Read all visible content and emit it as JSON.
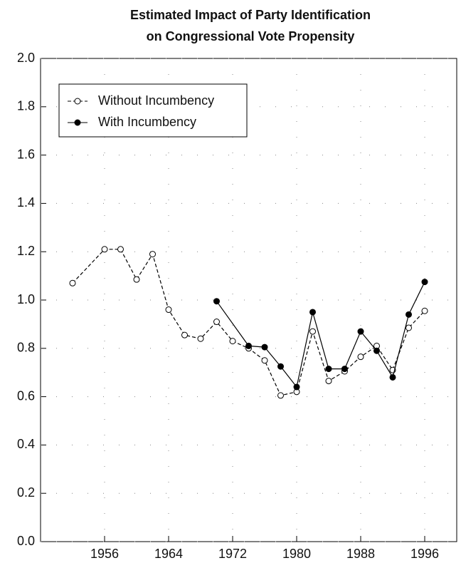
{
  "chart_data": {
    "type": "line",
    "title": [
      "Estimated Impact of Party Identification",
      "on Congressional Vote Propensity"
    ],
    "xlim": [
      1948,
      2000
    ],
    "xticks": [
      1956,
      1964,
      1972,
      1980,
      1988,
      1996
    ],
    "ylim": [
      0,
      2
    ],
    "yticks": [
      {
        "value": 0,
        "label": "0.0"
      },
      {
        "value": 0.2,
        "label": "0.2"
      },
      {
        "value": 0.4,
        "label": "0.4"
      },
      {
        "value": 0.6,
        "label": "0.6"
      },
      {
        "value": 0.8,
        "label": "0.8"
      },
      {
        "value": 1,
        "label": "1.0"
      },
      {
        "value": 1.2,
        "label": "1.2"
      },
      {
        "value": 1.4,
        "label": "1.4"
      },
      {
        "value": 1.6,
        "label": "1.6"
      },
      {
        "value": 1.8,
        "label": "1.8"
      },
      {
        "value": 2,
        "label": "2.0"
      }
    ],
    "grid": true,
    "legend": "upper left",
    "series": [
      {
        "name": "Without Incumbency",
        "color": "#000",
        "dashed": true,
        "marker": "open",
        "x": [
          1952,
          1956,
          1958,
          1960,
          1962,
          1964,
          1966,
          1968,
          1970,
          1972,
          1974,
          1976,
          1978,
          1980,
          1982,
          1984,
          1986,
          1988,
          1990,
          1992,
          1994,
          1996
        ],
        "values": [
          1.07,
          1.21,
          1.21,
          1.085,
          1.19,
          0.96,
          0.855,
          0.84,
          0.91,
          0.83,
          0.8,
          0.75,
          0.605,
          0.62,
          0.87,
          0.665,
          0.705,
          0.765,
          0.81,
          0.71,
          0.885,
          0.955
        ]
      },
      {
        "name": "With Incumbency",
        "color": "#000",
        "dashed": false,
        "marker": "filled",
        "x": [
          1970,
          1974,
          1976,
          1978,
          1980,
          1982,
          1984,
          1986,
          1988,
          1990,
          1992,
          1994,
          1996
        ],
        "values": [
          0.995,
          0.81,
          0.805,
          0.725,
          0.64,
          0.95,
          0.715,
          0.715,
          0.87,
          0.79,
          0.68,
          0.94,
          1.075
        ]
      }
    ]
  }
}
